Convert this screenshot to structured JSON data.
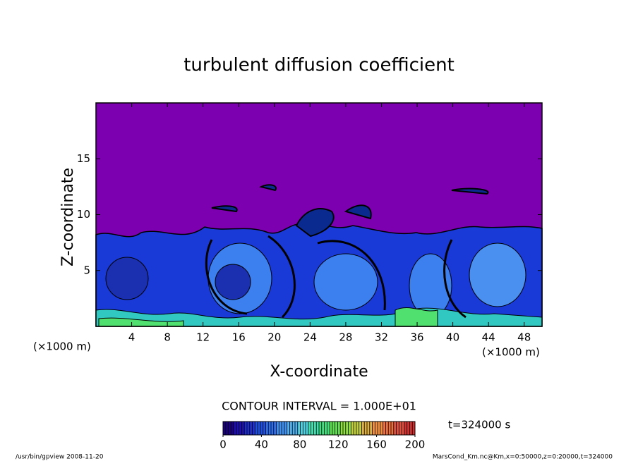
{
  "chart_data": {
    "type": "contour",
    "title": "turbulent diffusion coefficient",
    "xlabel": "X-coordinate",
    "ylabel": "Z-coordinate",
    "xunit": "(×1000 m)",
    "xlim": [
      0,
      50
    ],
    "xticks": [
      4,
      8,
      12,
      16,
      20,
      24,
      28,
      32,
      36,
      40,
      44,
      48
    ],
    "ylim": [
      0,
      20
    ],
    "yticks": [
      5,
      10,
      15
    ],
    "contour_interval": "CONTOUR INTERVAL = 1.000E+01",
    "colorbar": {
      "lim": [
        0,
        200
      ],
      "ticks": [
        0,
        40,
        80,
        120,
        160,
        200
      ],
      "colors": [
        "#1a0080",
        "#1e10b0",
        "#2030d0",
        "#2050e0",
        "#3070f0",
        "#4090f0",
        "#50b0f0",
        "#50d0e0",
        "#40e0b0",
        "#40e080",
        "#60e050",
        "#90e040",
        "#c0d040",
        "#e0b040",
        "#f09040",
        "#f07040",
        "#e05040",
        "#d03030"
      ]
    },
    "time_label": "t=324000 s",
    "footer_left": "/usr/bin/gpview  2008-11-20",
    "footer_right": "MarsCond_Km.nc@Km,x=0:50000,z=0:20000,t=324000"
  }
}
